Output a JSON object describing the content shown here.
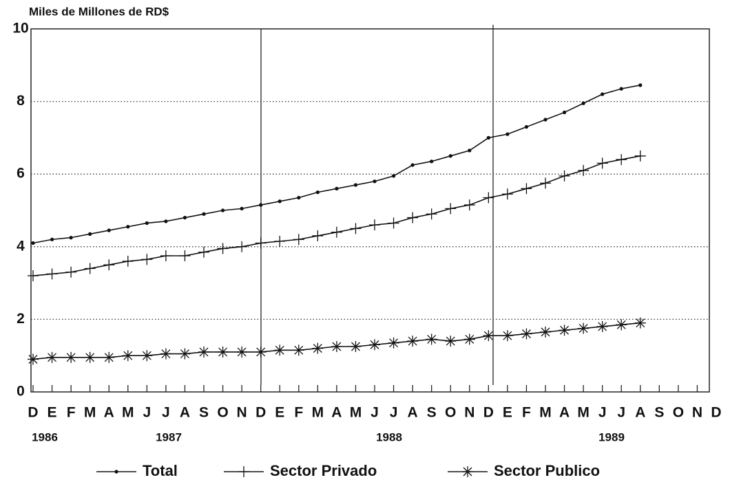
{
  "chart_data": {
    "type": "line",
    "y_axis_label": "Miles de Millones de RD$",
    "categories": [
      "D",
      "E",
      "F",
      "M",
      "A",
      "M",
      "J",
      "J",
      "A",
      "S",
      "O",
      "N",
      "D",
      "E",
      "F",
      "M",
      "A",
      "M",
      "J",
      "J",
      "A",
      "S",
      "O",
      "N",
      "D",
      "E",
      "F",
      "M",
      "A",
      "M",
      "J",
      "J",
      "A",
      "S",
      "O",
      "N",
      "D"
    ],
    "year_labels": [
      "1986",
      "1987",
      "1988",
      "1989"
    ],
    "ylim": [
      0,
      10
    ],
    "yticks": [
      0,
      2,
      4,
      6,
      8,
      10
    ],
    "grid": true,
    "series": [
      {
        "name": "Total",
        "color": "#111111",
        "marker": "dot",
        "values": [
          4.1,
          4.2,
          4.25,
          4.35,
          4.45,
          4.55,
          4.65,
          4.7,
          4.8,
          4.9,
          5.0,
          5.05,
          5.15,
          5.25,
          5.35,
          5.5,
          5.6,
          5.7,
          5.8,
          5.95,
          6.25,
          6.35,
          6.5,
          6.65,
          7.0,
          7.1,
          7.3,
          7.5,
          7.7,
          7.95,
          8.2,
          8.35,
          8.45,
          null,
          null,
          null,
          null
        ]
      },
      {
        "name": "Sector Privado",
        "color": "#111111",
        "marker": "plus",
        "values": [
          3.2,
          3.25,
          3.3,
          3.4,
          3.5,
          3.6,
          3.65,
          3.75,
          3.75,
          3.85,
          3.95,
          4.0,
          4.1,
          4.15,
          4.2,
          4.3,
          4.4,
          4.5,
          4.6,
          4.65,
          4.8,
          4.9,
          5.05,
          5.15,
          5.35,
          5.45,
          5.6,
          5.75,
          5.95,
          6.1,
          6.3,
          6.4,
          6.5,
          null,
          null,
          null,
          null
        ]
      },
      {
        "name": "Sector Publico",
        "color": "#111111",
        "marker": "star",
        "values": [
          0.9,
          0.95,
          0.95,
          0.95,
          0.95,
          1.0,
          1.0,
          1.05,
          1.05,
          1.1,
          1.1,
          1.1,
          1.1,
          1.15,
          1.15,
          1.2,
          1.25,
          1.25,
          1.3,
          1.35,
          1.4,
          1.45,
          1.4,
          1.45,
          1.55,
          1.55,
          1.6,
          1.65,
          1.7,
          1.75,
          1.8,
          1.85,
          1.9,
          null,
          null,
          null,
          null
        ]
      }
    ]
  }
}
